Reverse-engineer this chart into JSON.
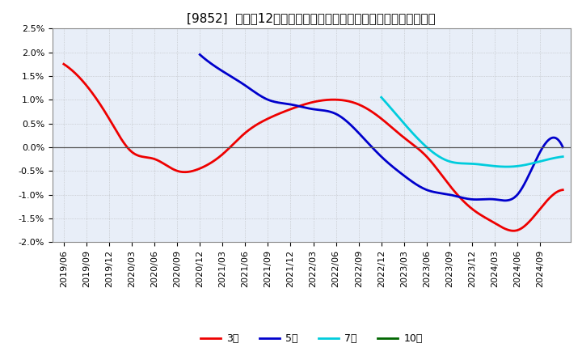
{
  "title": "[9852]  売上高12か月移動合計の対前年同期増減率の平均値の推移",
  "ylim": [
    -0.02,
    0.025
  ],
  "ytick_labels": [
    "-2.0%",
    "-1.5%",
    "-1.0%",
    "-0.5%",
    "0.0%",
    "0.5%",
    "1.0%",
    "1.5%",
    "2.0%",
    "2.5%"
  ],
  "ytick_vals": [
    -0.02,
    -0.015,
    -0.01,
    -0.005,
    0.0,
    0.005,
    0.01,
    0.015,
    0.02,
    0.025
  ],
  "background_color": "#ffffff",
  "plot_bg_color": "#e8eef8",
  "grid_color": "#aaaaaa",
  "series": {
    "3year": {
      "color": "#ee0000",
      "label": "3年",
      "x": [
        0,
        3,
        6,
        9,
        12,
        15,
        18,
        21,
        24,
        27,
        30,
        33,
        36,
        39,
        42,
        45,
        48,
        51,
        54,
        57,
        60,
        63,
        66
      ],
      "y": [
        0.0175,
        0.013,
        0.006,
        -0.001,
        -0.0025,
        -0.005,
        -0.0045,
        -0.0015,
        0.003,
        0.006,
        0.008,
        0.0095,
        0.01,
        0.009,
        0.006,
        0.002,
        -0.002,
        -0.008,
        -0.013,
        -0.016,
        -0.0175,
        -0.013,
        -0.009
      ]
    },
    "5year": {
      "color": "#0000cc",
      "label": "5年",
      "x": [
        18,
        21,
        24,
        27,
        30,
        33,
        36,
        39,
        42,
        45,
        48,
        51,
        54,
        57,
        60,
        63,
        66
      ],
      "y": [
        0.0195,
        0.016,
        0.013,
        0.01,
        0.009,
        0.008,
        0.007,
        0.003,
        -0.002,
        -0.006,
        -0.009,
        -0.01,
        -0.011,
        -0.011,
        -0.01,
        -0.001,
        0.0
      ]
    },
    "7year": {
      "color": "#00ccdd",
      "label": "7年",
      "x": [
        42,
        45,
        48,
        51,
        54,
        57,
        60,
        63,
        66
      ],
      "y": [
        0.0105,
        0.005,
        0.0,
        -0.003,
        -0.0035,
        -0.004,
        -0.004,
        -0.003,
        -0.002
      ]
    },
    "10year": {
      "color": "#006600",
      "label": "10年",
      "x": [],
      "y": []
    }
  },
  "x_tick_labels": [
    "2019/06",
    "2019/09",
    "2019/12",
    "2020/03",
    "2020/06",
    "2020/09",
    "2020/12",
    "2021/03",
    "2021/06",
    "2021/09",
    "2021/12",
    "2022/03",
    "2022/06",
    "2022/09",
    "2022/12",
    "2023/03",
    "2023/06",
    "2023/09",
    "2023/12",
    "2024/03",
    "2024/06",
    "2024/09"
  ],
  "title_fontsize": 11,
  "tick_fontsize": 8,
  "legend_fontsize": 9,
  "line_width": 2.0
}
